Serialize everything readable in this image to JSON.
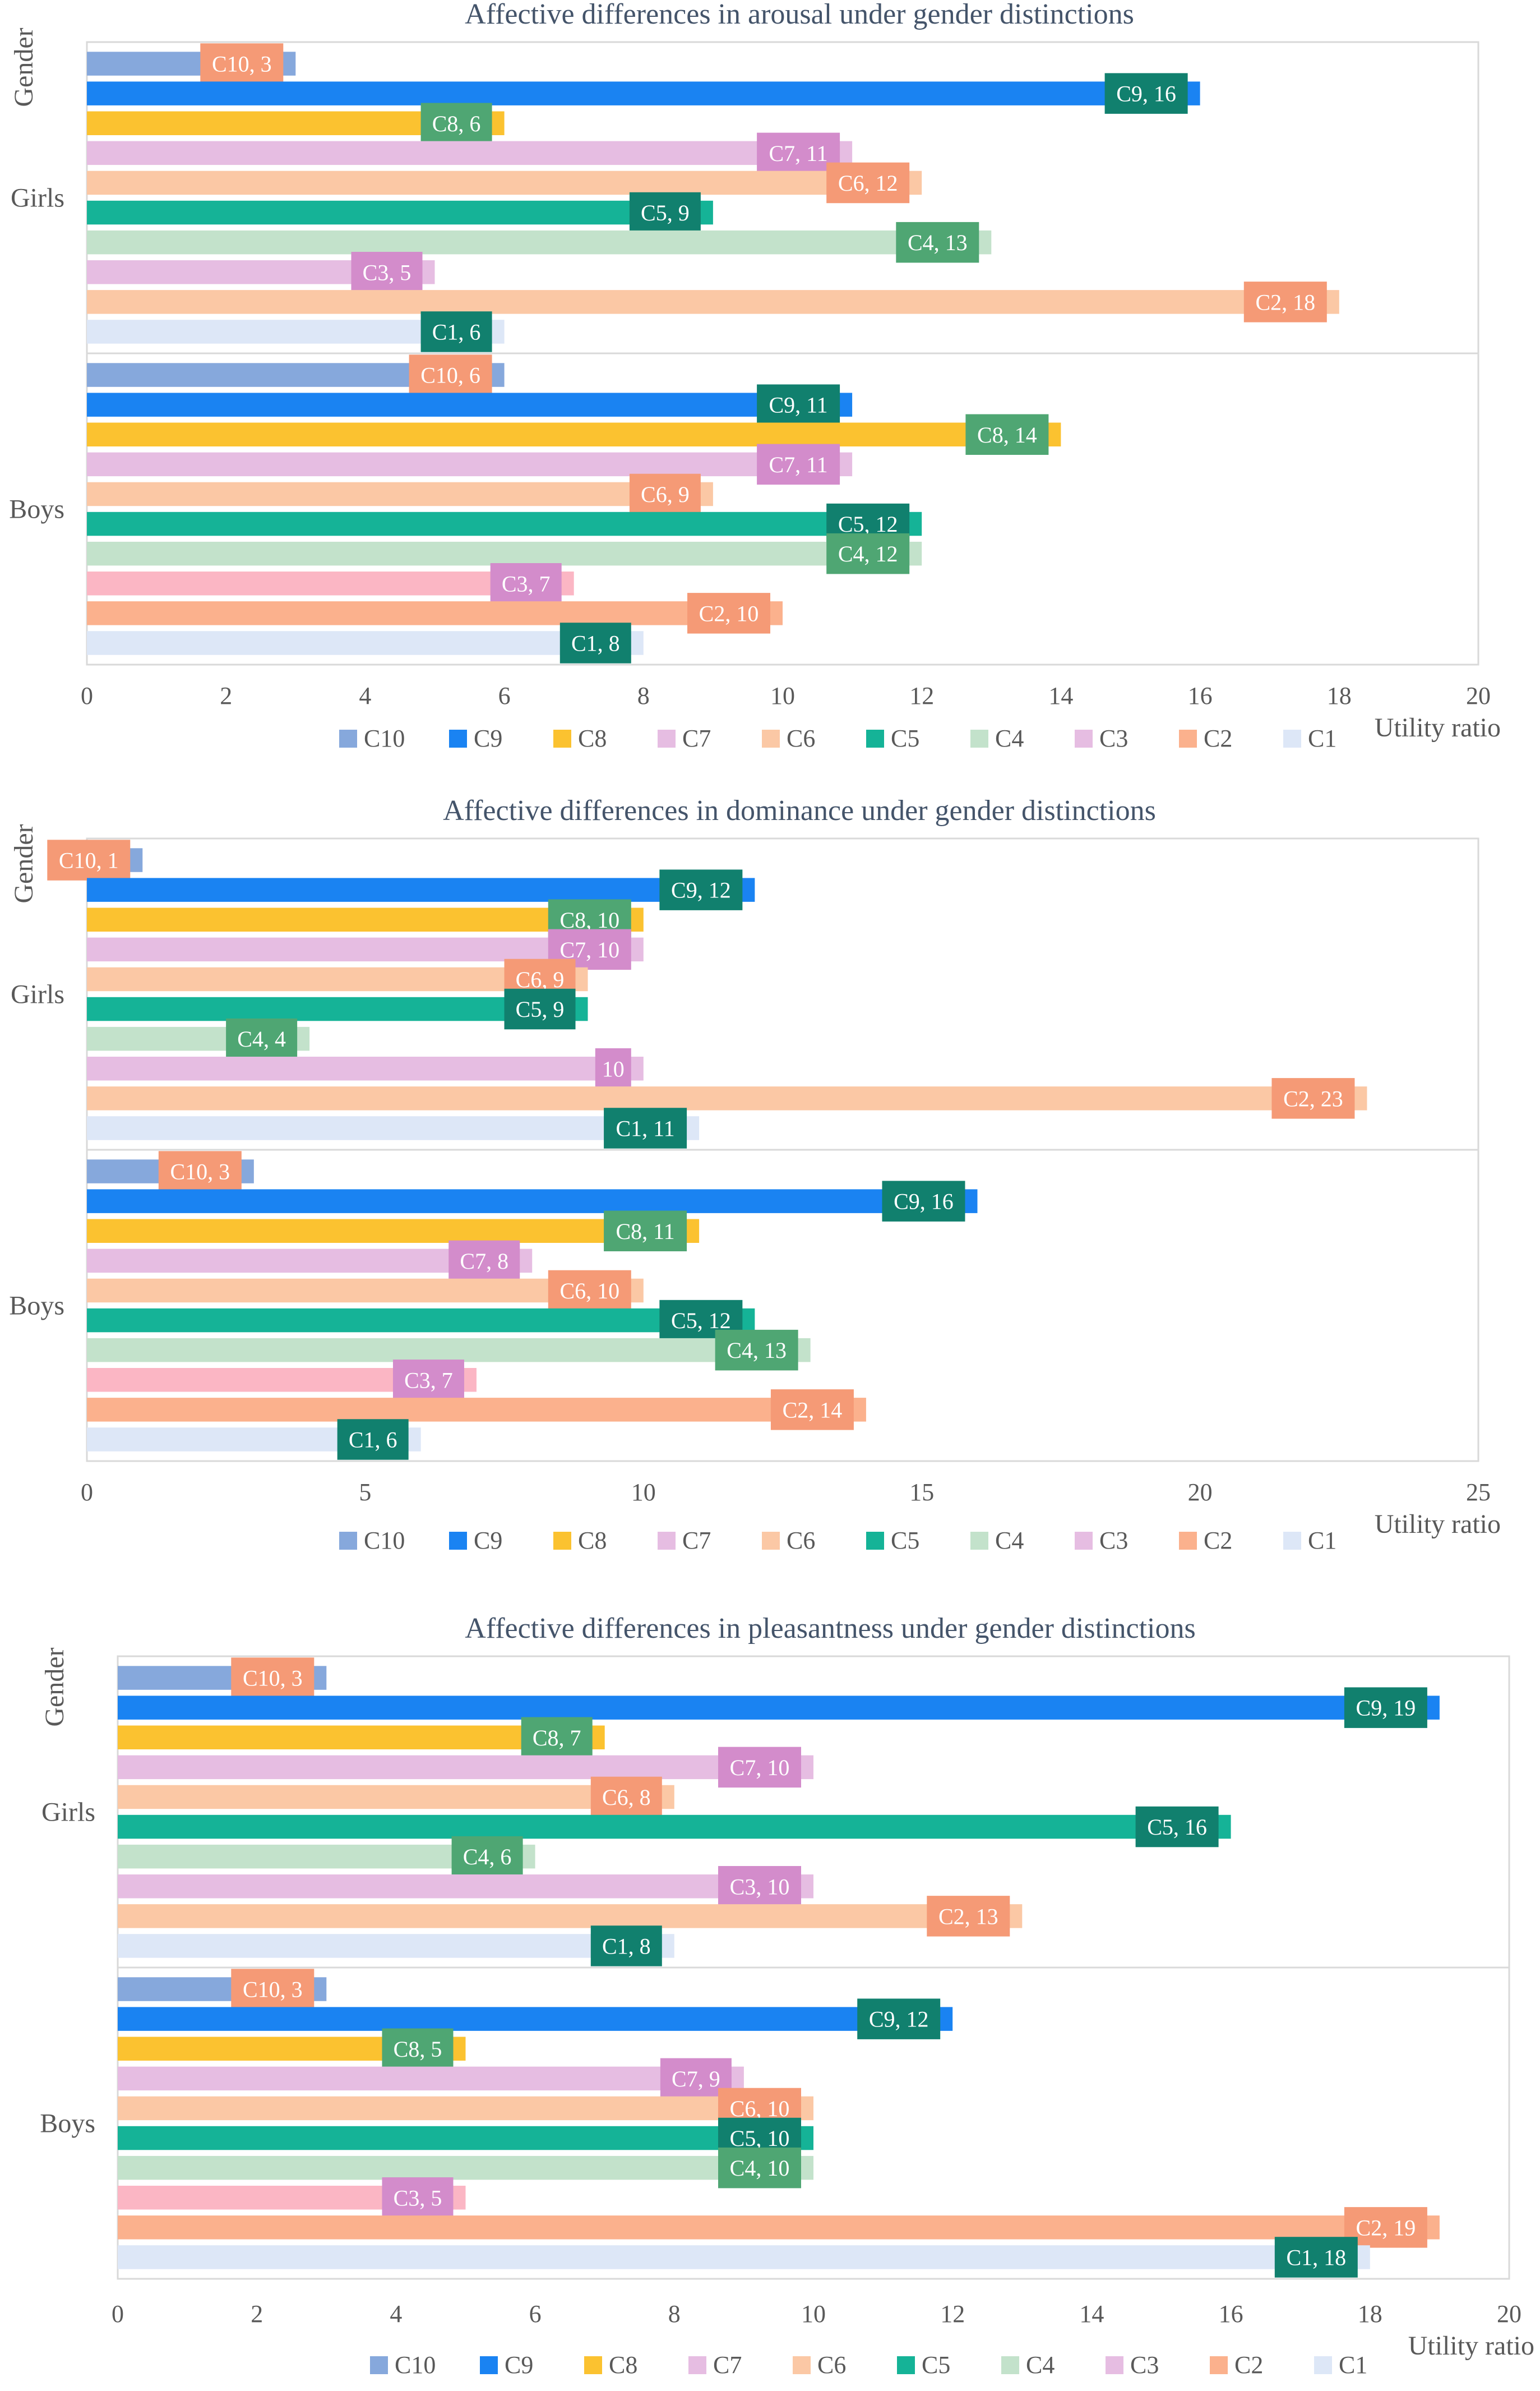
{
  "palette": {
    "C10": "#86a8dc",
    "C9": "#1a83f2",
    "C8": "#fbc230",
    "C7": "#e6bde2",
    "C6": "#fbc8a5",
    "C5": "#15b397",
    "C4": "#c3e2cb",
    "C3_girls": "#e6bde2",
    "C3_boys": "#fbb6c4",
    "C2_girls": "#fbc8a5",
    "C2_boys": "#fbb18d",
    "C1": "#dde7f7"
  },
  "label_colors": {
    "C10": "#f59a76",
    "C9": "#11806e",
    "C8": "#4fa673",
    "C7": "#d38ccb",
    "C6": "#f59a76",
    "C5": "#11806e",
    "C4": "#4fa673",
    "C3": "#d38ccb",
    "C2": "#f59a76",
    "C1": "#11806e"
  },
  "chart_data": [
    {
      "type": "bar",
      "orientation": "horizontal",
      "title": "Affective differences in arousal under gender distinctions",
      "ylabel": "Gender",
      "xlabel": "Utility ratio",
      "xlim": [
        0,
        20
      ],
      "xticks": [
        "0",
        "2",
        "4",
        "6",
        "8",
        "10",
        "12",
        "14",
        "16",
        "18",
        "20"
      ],
      "legend": [
        "C10",
        "C9",
        "C8",
        "C7",
        "C6",
        "C5",
        "C4",
        "C3",
        "C2",
        "C1"
      ],
      "groups": [
        {
          "name": "Girls",
          "categories": [
            "C10",
            "C9",
            "C8",
            "C7",
            "C6",
            "C5",
            "C4",
            "C3",
            "C2",
            "C1"
          ],
          "values": [
            3,
            16,
            6,
            11,
            12,
            9,
            13,
            5,
            18,
            6
          ],
          "data_labels": [
            "C10, 3",
            "C9, 16",
            "C8, 6",
            "C7, 11",
            "C6, 12",
            "C5, 9",
            "C4, 13",
            "C3, 5",
            "C2, 18",
            "C1, 6"
          ]
        },
        {
          "name": "Boys",
          "categories": [
            "C10",
            "C9",
            "C8",
            "C7",
            "C6",
            "C5",
            "C4",
            "C3",
            "C2",
            "C1"
          ],
          "values": [
            6,
            11,
            14,
            11,
            9,
            12,
            12,
            7,
            10,
            8
          ],
          "data_labels": [
            "C10, 6",
            "C9, 11",
            "C8, 14",
            "C7, 11",
            "C6, 9",
            "C5, 12",
            "C4, 12",
            "C3, 7",
            "C2, 10",
            "C1, 8"
          ]
        }
      ]
    },
    {
      "type": "bar",
      "orientation": "horizontal",
      "title": "Affective differences in dominance under gender distinctions",
      "ylabel": "Gender",
      "xlabel": "Utility ratio",
      "xlim": [
        0,
        25
      ],
      "xticks": [
        "0",
        "5",
        "10",
        "15",
        "20",
        "25"
      ],
      "legend": [
        "C10",
        "C9",
        "C8",
        "C7",
        "C6",
        "C5",
        "C4",
        "C3",
        "C2",
        "C1"
      ],
      "groups": [
        {
          "name": "Girls",
          "categories": [
            "C10",
            "C9",
            "C8",
            "C7",
            "C6",
            "C5",
            "C4",
            "C3",
            "C2",
            "C1"
          ],
          "values": [
            1,
            12,
            10,
            10,
            9,
            9,
            4,
            10,
            23,
            11
          ],
          "data_labels": [
            "C10, 1",
            "C9, 12",
            "C8, 10",
            "C7, 10",
            "C6, 9",
            "C5, 9",
            "C4, 4",
            "10",
            "C2, 23",
            "C1, 11"
          ]
        },
        {
          "name": "Boys",
          "categories": [
            "C10",
            "C9",
            "C8",
            "C7",
            "C6",
            "C5",
            "C4",
            "C3",
            "C2",
            "C1"
          ],
          "values": [
            3,
            16,
            11,
            8,
            10,
            12,
            13,
            7,
            14,
            6
          ],
          "data_labels": [
            "C10, 3",
            "C9, 16",
            "C8, 11",
            "C7, 8",
            "C6, 10",
            "C5, 12",
            "C4, 13",
            "C3, 7",
            "C2, 14",
            "C1, 6"
          ]
        }
      ]
    },
    {
      "type": "bar",
      "orientation": "horizontal",
      "title": "Affective differences in pleasantness under gender distinctions",
      "ylabel": "Gender",
      "xlabel": "Utility ratio",
      "xlim": [
        0,
        20
      ],
      "xticks": [
        "0",
        "2",
        "4",
        "6",
        "8",
        "10",
        "12",
        "14",
        "16",
        "18",
        "20"
      ],
      "legend": [
        "C10",
        "C9",
        "C8",
        "C7",
        "C6",
        "C5",
        "C4",
        "C3",
        "C2",
        "C1"
      ],
      "groups": [
        {
          "name": "Girls",
          "categories": [
            "C10",
            "C9",
            "C8",
            "C7",
            "C6",
            "C5",
            "C4",
            "C3",
            "C2",
            "C1"
          ],
          "values": [
            3,
            19,
            7,
            10,
            8,
            16,
            6,
            10,
            13,
            8
          ],
          "data_labels": [
            "C10, 3",
            "C9, 19",
            "C8, 7",
            "C7, 10",
            "C6, 8",
            "C5, 16",
            "C4, 6",
            "C3, 10",
            "C2, 13",
            "C1, 8"
          ]
        },
        {
          "name": "Boys",
          "categories": [
            "C10",
            "C9",
            "C8",
            "C7",
            "C6",
            "C5",
            "C4",
            "C3",
            "C2",
            "C1"
          ],
          "values": [
            3,
            12,
            5,
            9,
            10,
            10,
            10,
            5,
            19,
            18
          ],
          "data_labels": [
            "C10, 3",
            "C9, 12",
            "C8, 5",
            "C7, 9",
            "C6, 10",
            "C5, 10",
            "C4, 10",
            "C3, 5",
            "C2, 19",
            "C1, 18"
          ]
        }
      ]
    }
  ]
}
